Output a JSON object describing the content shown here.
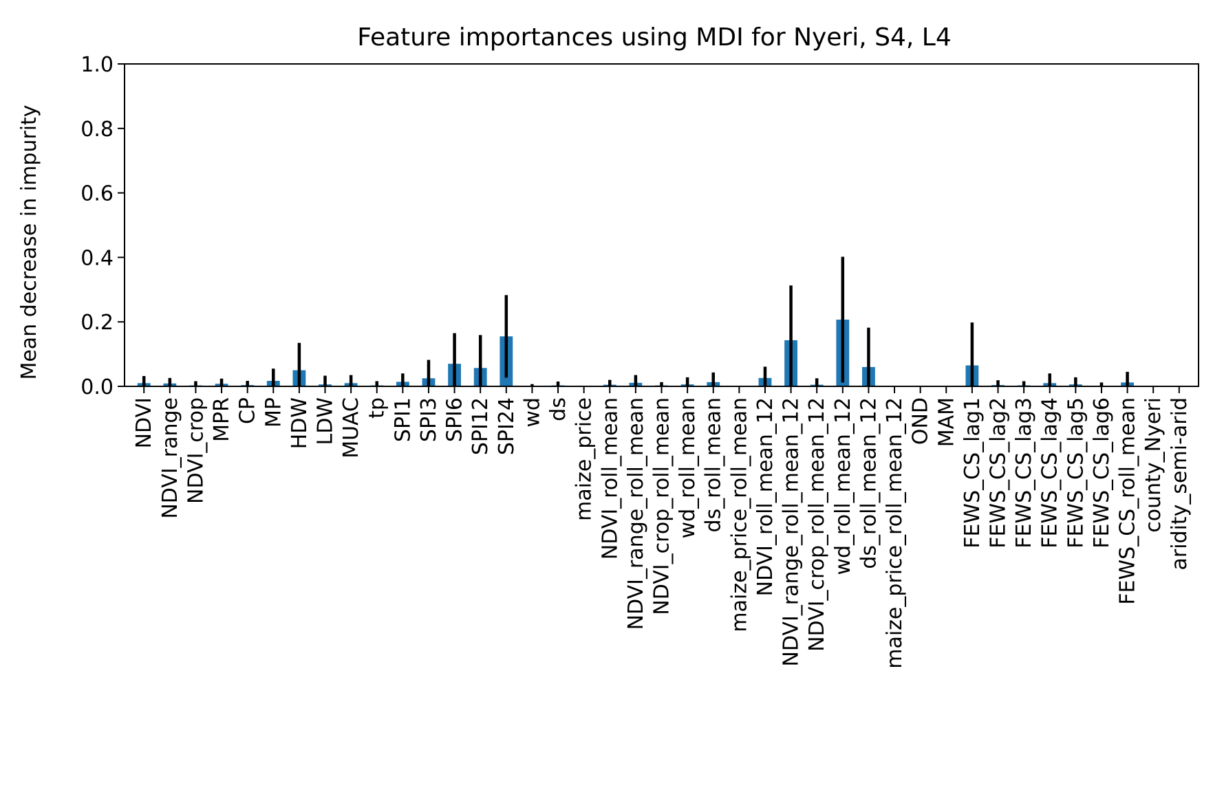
{
  "chart_data": {
    "type": "bar",
    "title": "Feature importances using MDI for Nyeri, S4, L4",
    "xlabel": "",
    "ylabel": "Mean decrease in impurity",
    "ylim": [
      0,
      1.0
    ],
    "yticks": [
      "0.0",
      "0.2",
      "0.4",
      "0.6",
      "0.8",
      "1.0"
    ],
    "grid": false,
    "bar_color": "#1f77b4",
    "error_color": "#000000",
    "categories": [
      "NDVI",
      "NDVI_range",
      "NDVI_crop",
      "MPR",
      "CP",
      "MP",
      "HDW",
      "LDW",
      "MUAC",
      "tp",
      "SPI1",
      "SPI3",
      "SPI6",
      "SPI12",
      "SPI24",
      "wd",
      "ds",
      "maize_price",
      "NDVI_roll_mean",
      "NDVI_range_roll_mean",
      "NDVI_crop_roll_mean",
      "wd_roll_mean",
      "ds_roll_mean",
      "maize_price_roll_mean",
      "NDVI_roll_mean_12",
      "NDVI_range_roll_mean_12",
      "NDVI_crop_roll_mean_12",
      "wd_roll_mean_12",
      "ds_roll_mean_12",
      "maize_price_roll_mean_12",
      "OND",
      "MAM",
      "FEWS_CS_lag1",
      "FEWS_CS_lag2",
      "FEWS_CS_lag3",
      "FEWS_CS_lag4",
      "FEWS_CS_lag5",
      "FEWS_CS_lag6",
      "FEWS_CS_roll_mean",
      "county_Nyeri",
      "aridity_semi-arid"
    ],
    "values": [
      0.01,
      0.009,
      0.003,
      0.008,
      0.004,
      0.017,
      0.05,
      0.006,
      0.01,
      0.003,
      0.014,
      0.025,
      0.07,
      0.057,
      0.155,
      0.002,
      0.003,
      0.0,
      0.005,
      0.011,
      0.003,
      0.006,
      0.013,
      0.0,
      0.026,
      0.143,
      0.005,
      0.207,
      0.06,
      0.0,
      0.0,
      0.0,
      0.065,
      0.004,
      0.003,
      0.01,
      0.006,
      0.002,
      0.012,
      0.0,
      0.0
    ],
    "errors": [
      0.022,
      0.017,
      0.013,
      0.016,
      0.013,
      0.038,
      0.085,
      0.027,
      0.025,
      0.013,
      0.026,
      0.057,
      0.095,
      0.102,
      0.128,
      0.005,
      0.012,
      0.0,
      0.015,
      0.024,
      0.01,
      0.022,
      0.03,
      0.0,
      0.035,
      0.17,
      0.02,
      0.195,
      0.122,
      0.0,
      0.0,
      0.0,
      0.133,
      0.015,
      0.013,
      0.03,
      0.022,
      0.01,
      0.033,
      0.0,
      0.0
    ]
  }
}
